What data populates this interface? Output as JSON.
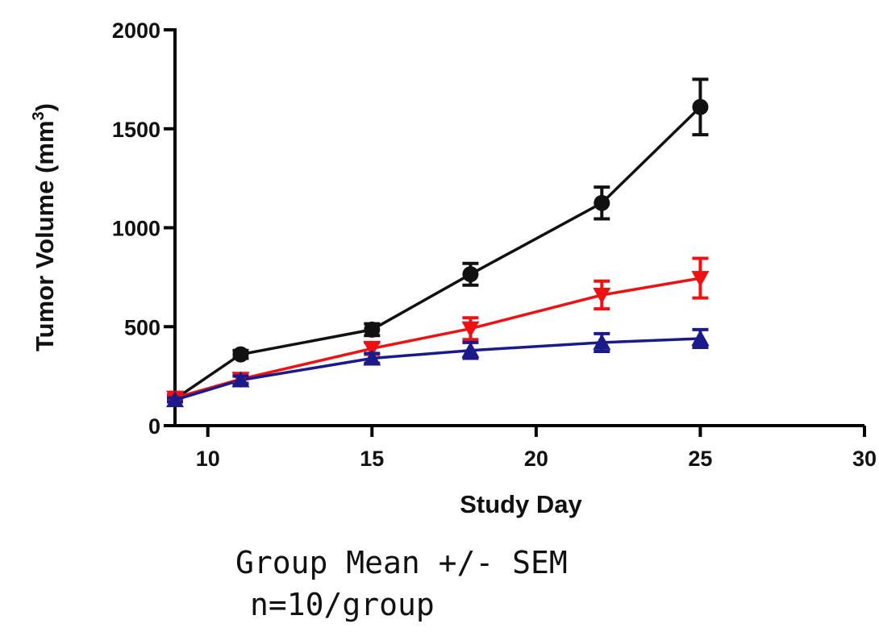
{
  "chart_data": {
    "type": "line",
    "xlabel": "Study Day",
    "ylabel": "Tumor Volume (mm³)",
    "ylabel_parts": {
      "base": "Tumor Volume (mm",
      "sup": "3",
      "end": ")"
    },
    "xlim": [
      9,
      30
    ],
    "ylim": [
      0,
      2000
    ],
    "x_ticks": [
      10,
      15,
      20,
      25,
      30
    ],
    "y_ticks": [
      0,
      500,
      1000,
      1500,
      2000
    ],
    "grid": false,
    "series": [
      {
        "color": "#111111",
        "marker": "circle",
        "x": [
          9,
          11,
          15,
          18,
          22,
          25
        ],
        "y": [
          135,
          360,
          485,
          765,
          1125,
          1610
        ],
        "err": [
          15,
          20,
          30,
          55,
          80,
          140
        ]
      },
      {
        "color": "#ee1111",
        "marker": "triangle-down",
        "x": [
          9,
          11,
          15,
          18,
          22,
          25
        ],
        "y": [
          140,
          235,
          390,
          490,
          660,
          745
        ],
        "err": [
          15,
          20,
          30,
          55,
          70,
          100
        ]
      },
      {
        "color": "#1a1a8a",
        "marker": "triangle-up",
        "x": [
          9,
          11,
          15,
          18,
          22,
          25
        ],
        "y": [
          130,
          230,
          340,
          380,
          420,
          440
        ],
        "err": [
          10,
          20,
          25,
          40,
          45,
          45
        ]
      }
    ]
  },
  "caption": {
    "line1": "Group Mean +/- SEM",
    "line2": "n=10/group"
  }
}
